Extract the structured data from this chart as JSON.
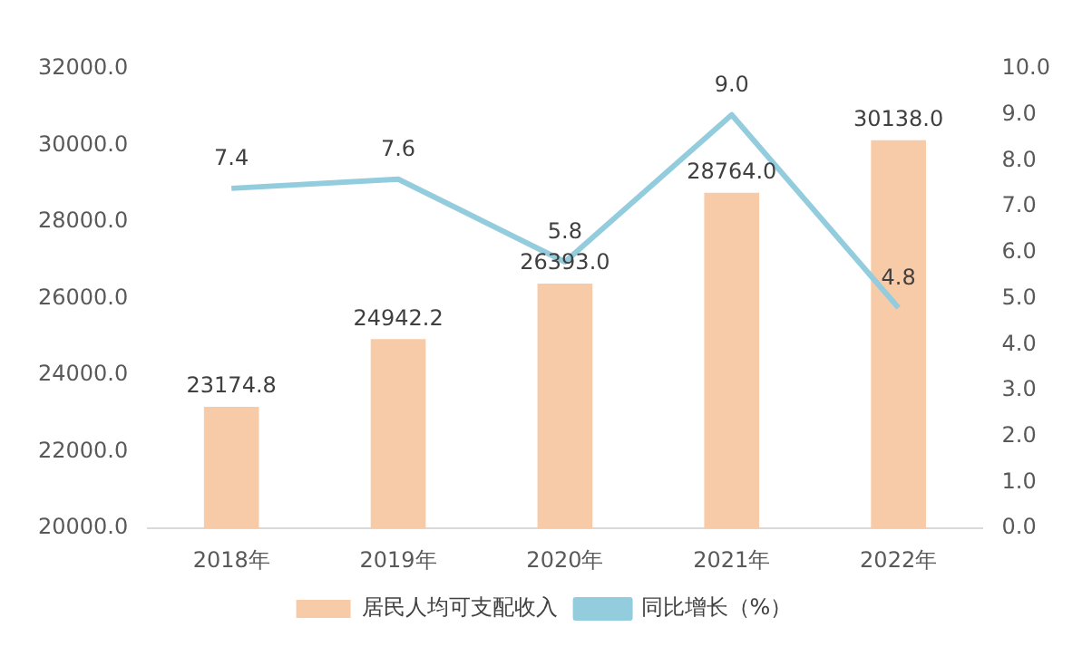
{
  "chart_data": {
    "type": "bar",
    "categories": [
      "2018年",
      "2019年",
      "2020年",
      "2021年",
      "2022年"
    ],
    "series": [
      {
        "name": "居民人均可支配收入",
        "color": "#f8cba8",
        "values": [
          23174.8,
          24942.2,
          26393.0,
          28764.0,
          30138.0
        ],
        "value_labels": [
          "23174.8",
          "24942.2",
          "26393.0",
          "28764.0",
          "30138.0"
        ]
      },
      {
        "name": "同比增长（%）",
        "type": "line",
        "axis": "y2",
        "color": "#93cddd",
        "values": [
          7.4,
          7.6,
          5.8,
          9.0,
          4.8
        ],
        "value_labels": [
          "7.4",
          "7.6",
          "5.8",
          "9.0",
          "4.8"
        ]
      }
    ],
    "ylim": [
      20000,
      32000
    ],
    "yticks": [
      {
        "value": 20000,
        "label": "20000.0"
      },
      {
        "value": 22000,
        "label": "22000.0"
      },
      {
        "value": 24000,
        "label": "24000.0"
      },
      {
        "value": 26000,
        "label": "26000.0"
      },
      {
        "value": 28000,
        "label": "28000.0"
      },
      {
        "value": 30000,
        "label": "30000.0"
      },
      {
        "value": 32000,
        "label": "32000.0"
      }
    ],
    "y2lim": [
      0,
      10
    ],
    "y2ticks": [
      {
        "value": 0,
        "label": "0.0"
      },
      {
        "value": 1,
        "label": "1.0"
      },
      {
        "value": 2,
        "label": "2.0"
      },
      {
        "value": 3,
        "label": "3.0"
      },
      {
        "value": 4,
        "label": "4.0"
      },
      {
        "value": 5,
        "label": "5.0"
      },
      {
        "value": 6,
        "label": "6.0"
      },
      {
        "value": 7,
        "label": "7.0"
      },
      {
        "value": 8,
        "label": "8.0"
      },
      {
        "value": 9,
        "label": "9.0"
      },
      {
        "value": 10,
        "label": "10.0"
      }
    ],
    "legend": "bottom",
    "marker": "none"
  }
}
